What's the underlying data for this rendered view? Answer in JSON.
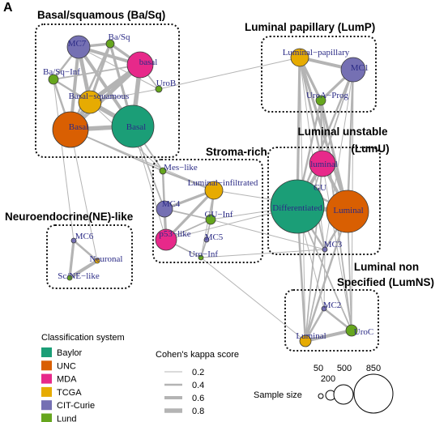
{
  "panel_label": "A",
  "colors": {
    "Baylor": "#1b9e77",
    "UNC": "#d95f02",
    "MDA": "#e7298a",
    "TCGA": "#e6ab02",
    "CIT-Curie": "#7570b3",
    "Lund": "#66a61e"
  },
  "groups": [
    {
      "id": "basq",
      "title": "Basal/squamous (Ba/Sq)"
    },
    {
      "id": "lump",
      "title": "Luminal papillary (LumP)"
    },
    {
      "id": "lumu",
      "title_line1": "Luminal unstable",
      "title_line2": "(LumU)"
    },
    {
      "id": "stroma",
      "title": "Stroma-rich"
    },
    {
      "id": "ne",
      "title": "Neuroendocrine(NE)-like"
    },
    {
      "id": "lumns",
      "title_line1": "Luminal non",
      "title_line2": "Specified (LumNS)"
    }
  ],
  "nodes": [
    {
      "id": "MC7",
      "label": "MC7",
      "system": "CIT-Curie"
    },
    {
      "id": "BaSqLund",
      "label": "Ba/Sq",
      "system": "Lund"
    },
    {
      "id": "basalMDA",
      "label": "basal",
      "system": "MDA"
    },
    {
      "id": "BaSqInf",
      "label": "Ba/Sq−Inf",
      "system": "Lund"
    },
    {
      "id": "UroB",
      "label": "UroB",
      "system": "Lund"
    },
    {
      "id": "BasalSq",
      "label": "Basal−squamous",
      "system": "TCGA"
    },
    {
      "id": "BasalUNC",
      "label": "Basal",
      "system": "UNC"
    },
    {
      "id": "BasalBaylor",
      "label": "Basal",
      "system": "Baylor"
    },
    {
      "id": "LumPap",
      "label": "Luminal−papillary",
      "system": "TCGA"
    },
    {
      "id": "MC1",
      "label": "MC1",
      "system": "CIT-Curie"
    },
    {
      "id": "UroAProg",
      "label": "UroA−Prog",
      "system": "Lund"
    },
    {
      "id": "luminalMDA",
      "label": "luminal",
      "system": "MDA"
    },
    {
      "id": "GU",
      "label": "GU",
      "system": "Lund"
    },
    {
      "id": "Differentiated",
      "label": "Differentiated",
      "system": "Baylor"
    },
    {
      "id": "LuminalUNC",
      "label": "Luminal",
      "system": "UNC"
    },
    {
      "id": "MC3",
      "label": "MC3",
      "system": "CIT-Curie"
    },
    {
      "id": "MesLike",
      "label": "Mes−like",
      "system": "Lund"
    },
    {
      "id": "LumInf",
      "label": "Luminal−infiltrated",
      "system": "TCGA"
    },
    {
      "id": "MC4",
      "label": "MC4",
      "system": "CIT-Curie"
    },
    {
      "id": "GUInf",
      "label": "GU−Inf",
      "system": "Lund"
    },
    {
      "id": "p53",
      "label": "p53−like",
      "system": "MDA"
    },
    {
      "id": "MC5",
      "label": "MC5",
      "system": "CIT-Curie"
    },
    {
      "id": "UroInf",
      "label": "Uro−Inf",
      "system": "Lund"
    },
    {
      "id": "MC6",
      "label": "MC6",
      "system": "CIT-Curie"
    },
    {
      "id": "Neuronal",
      "label": "Neuronal",
      "system": "TCGA"
    },
    {
      "id": "ScNE",
      "label": "Sc/NE−like",
      "system": "Lund"
    },
    {
      "id": "MC2",
      "label": "MC2",
      "system": "CIT-Curie"
    },
    {
      "id": "LuminalTCGA",
      "label": "Luminal",
      "system": "TCGA"
    },
    {
      "id": "UroC",
      "label": "UroC",
      "system": "Lund"
    }
  ],
  "edges": [
    {
      "a": "MC7",
      "b": "basalMDA",
      "k": 0.6
    },
    {
      "a": "MC7",
      "b": "BasalSq",
      "k": 0.7
    },
    {
      "a": "MC7",
      "b": "BasalUNC",
      "k": 0.6
    },
    {
      "a": "MC7",
      "b": "BasalBaylor",
      "k": 0.6
    },
    {
      "a": "MC7",
      "b": "BaSqLund",
      "k": 0.5
    },
    {
      "a": "MC7",
      "b": "BaSqInf",
      "k": 0.4
    },
    {
      "a": "BaSqLund",
      "b": "basalMDA",
      "k": 0.5
    },
    {
      "a": "BaSqLund",
      "b": "BasalSq",
      "k": 0.5
    },
    {
      "a": "BaSqLund",
      "b": "BasalBaylor",
      "k": 0.5
    },
    {
      "a": "BaSqLund",
      "b": "BasalUNC",
      "k": 0.4
    },
    {
      "a": "basalMDA",
      "b": "BasalSq",
      "k": 0.8
    },
    {
      "a": "basalMDA",
      "b": "BasalUNC",
      "k": 0.7
    },
    {
      "a": "basalMDA",
      "b": "BasalBaylor",
      "k": 0.8
    },
    {
      "a": "BasalSq",
      "b": "BasalUNC",
      "k": 0.8
    },
    {
      "a": "BasalSq",
      "b": "BasalBaylor",
      "k": 0.8
    },
    {
      "a": "BasalUNC",
      "b": "BasalBaylor",
      "k": 0.8
    },
    {
      "a": "BaSqInf",
      "b": "BasalSq",
      "k": 0.4
    },
    {
      "a": "BaSqInf",
      "b": "BasalUNC",
      "k": 0.4
    },
    {
      "a": "BaSqInf",
      "b": "basalMDA",
      "k": 0.3
    },
    {
      "a": "UroB",
      "b": "basalMDA",
      "k": 0.3
    },
    {
      "a": "UroB",
      "b": "BasalSq",
      "k": 0.2
    },
    {
      "a": "UroB",
      "b": "LumPap",
      "k": 0.2
    },
    {
      "a": "BasalUNC",
      "b": "MesLike",
      "k": 0.3
    },
    {
      "a": "BasalBaylor",
      "b": "MesLike",
      "k": 0.3
    },
    {
      "a": "BasalSq",
      "b": "MesLike",
      "k": 0.2
    },
    {
      "a": "BasalBaylor",
      "b": "MC4",
      "k": 0.3
    },
    {
      "a": "BasalUNC",
      "b": "LumInf",
      "k": 0.2
    },
    {
      "a": "BaSqInf",
      "b": "MC6",
      "k": 0.2
    },
    {
      "a": "BasalUNC",
      "b": "Neuronal",
      "k": 0.2
    },
    {
      "a": "BasalBaylor",
      "b": "p53",
      "k": 0.2
    },
    {
      "a": "MC7",
      "b": "UroB",
      "k": 0.2
    },
    {
      "a": "LumPap",
      "b": "MC1",
      "k": 0.6
    },
    {
      "a": "LumPap",
      "b": "UroAProg",
      "k": 0.5
    },
    {
      "a": "MC1",
      "b": "UroAProg",
      "k": 0.5
    },
    {
      "a": "LumPap",
      "b": "Differentiated",
      "k": 0.5
    },
    {
      "a": "LumPap",
      "b": "LuminalUNC",
      "k": 0.5
    },
    {
      "a": "LumPap",
      "b": "luminalMDA",
      "k": 0.4
    },
    {
      "a": "MC1",
      "b": "Differentiated",
      "k": 0.4
    },
    {
      "a": "MC1",
      "b": "LuminalUNC",
      "k": 0.4
    },
    {
      "a": "MC1",
      "b": "luminalMDA",
      "k": 0.3
    },
    {
      "a": "UroAProg",
      "b": "Differentiated",
      "k": 0.4
    },
    {
      "a": "UroAProg",
      "b": "LuminalUNC",
      "k": 0.5
    },
    {
      "a": "UroAProg",
      "b": "luminalMDA",
      "k": 0.4
    },
    {
      "a": "LumPap",
      "b": "MC3",
      "k": 0.2
    },
    {
      "a": "LumPap",
      "b": "LuminalTCGA",
      "k": 0.2
    },
    {
      "a": "MC1",
      "b": "MC3",
      "k": 0.2
    },
    {
      "a": "luminalMDA",
      "b": "Differentiated",
      "k": 0.6
    },
    {
      "a": "luminalMDA",
      "b": "LuminalUNC",
      "k": 0.6
    },
    {
      "a": "Differentiated",
      "b": "LuminalUNC",
      "k": 0.8
    },
    {
      "a": "GU",
      "b": "Differentiated",
      "k": 0.4
    },
    {
      "a": "GU",
      "b": "LuminalUNC",
      "k": 0.4
    },
    {
      "a": "GU",
      "b": "luminalMDA",
      "k": 0.3
    },
    {
      "a": "MC3",
      "b": "Differentiated",
      "k": 0.4
    },
    {
      "a": "MC3",
      "b": "LuminalUNC",
      "k": 0.4
    },
    {
      "a": "MC3",
      "b": "GU",
      "k": 0.3
    },
    {
      "a": "Differentiated",
      "b": "LuminalTCGA",
      "k": 0.4
    },
    {
      "a": "LuminalUNC",
      "b": "LuminalTCGA",
      "k": 0.4
    },
    {
      "a": "Differentiated",
      "b": "UroC",
      "k": 0.3
    },
    {
      "a": "LuminalUNC",
      "b": "UroC",
      "k": 0.3
    },
    {
      "a": "Differentiated",
      "b": "MC2",
      "k": 0.2
    },
    {
      "a": "luminalMDA",
      "b": "LuminalTCGA",
      "k": 0.3
    },
    {
      "a": "Differentiated",
      "b": "GUInf",
      "k": 0.2
    },
    {
      "a": "Differentiated",
      "b": "p53",
      "k": 0.2
    },
    {
      "a": "LuminalUNC",
      "b": "LumInf",
      "k": 0.2
    },
    {
      "a": "MesLike",
      "b": "LumInf",
      "k": 0.4
    },
    {
      "a": "MesLike",
      "b": "MC4",
      "k": 0.4
    },
    {
      "a": "LumInf",
      "b": "MC4",
      "k": 0.5
    },
    {
      "a": "LumInf",
      "b": "p53",
      "k": 0.5
    },
    {
      "a": "MC4",
      "b": "p53",
      "k": 0.5
    },
    {
      "a": "LumInf",
      "b": "GUInf",
      "k": 0.4
    },
    {
      "a": "GUInf",
      "b": "p53",
      "k": 0.3
    },
    {
      "a": "MC5",
      "b": "UroInf",
      "k": 0.3
    },
    {
      "a": "p53",
      "b": "UroInf",
      "k": 0.3
    },
    {
      "a": "GUInf",
      "b": "MC5",
      "k": 0.3
    },
    {
      "a": "LumInf",
      "b": "UroInf",
      "k": 0.2
    },
    {
      "a": "MC4",
      "b": "GUInf",
      "k": 0.3
    },
    {
      "a": "UroInf",
      "b": "MC3",
      "k": 0.2
    },
    {
      "a": "GUInf",
      "b": "MC3",
      "k": 0.2
    },
    {
      "a": "UroInf",
      "b": "LuminalTCGA",
      "k": 0.2
    },
    {
      "a": "MC6",
      "b": "Neuronal",
      "k": 0.4
    },
    {
      "a": "MC6",
      "b": "ScNE",
      "k": 0.5
    },
    {
      "a": "Neuronal",
      "b": "ScNE",
      "k": 0.6
    },
    {
      "a": "MC2",
      "b": "LuminalTCGA",
      "k": 0.4
    },
    {
      "a": "MC2",
      "b": "UroC",
      "k": 0.4
    },
    {
      "a": "LuminalTCGA",
      "b": "UroC",
      "k": 0.6
    },
    {
      "a": "MC3",
      "b": "LuminalTCGA",
      "k": 0.3
    },
    {
      "a": "MC3",
      "b": "MC2",
      "k": 0.2
    },
    {
      "a": "UroAProg",
      "b": "UroC",
      "k": 0.3
    },
    {
      "a": "MC1",
      "b": "UroC",
      "k": 0.2
    },
    {
      "a": "luminalMDA",
      "b": "UroC",
      "k": 0.2
    }
  ],
  "legend": {
    "system_title": "Classification system",
    "systems": [
      "Baylor",
      "UNC",
      "MDA",
      "TCGA",
      "CIT-Curie",
      "Lund"
    ],
    "kappa_title": "Cohen's kappa score",
    "kappa_values": [
      "0.2",
      "0.4",
      "0.6",
      "0.8"
    ],
    "size_title": "Sample size",
    "size_values": [
      "50",
      "200",
      "500",
      "850"
    ]
  }
}
